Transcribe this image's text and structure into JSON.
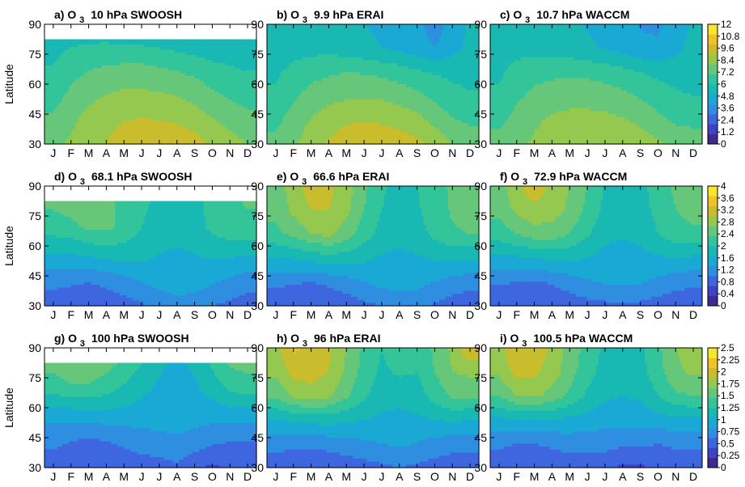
{
  "colors": {
    "palette": [
      "#3e2a91",
      "#3d43c7",
      "#3e66de",
      "#2f8ee0",
      "#1aa9d5",
      "#19b8b3",
      "#33c49a",
      "#66c77a",
      "#95c84f",
      "#c9bd2d",
      "#f0c22a",
      "#f7e62b"
    ],
    "contour_line": "#ffffff",
    "missing": "#ffffff"
  },
  "axes": {
    "ylabel": "Latitude",
    "months": [
      "J",
      "F",
      "M",
      "A",
      "M",
      "J",
      "J",
      "A",
      "S",
      "O",
      "N",
      "D"
    ],
    "lat_ticks": [
      "30",
      "45",
      "60",
      "75",
      "90"
    ]
  },
  "colorbars": [
    {
      "ticks": [
        "12",
        "10.8",
        "9.6",
        "8.4",
        "7.2",
        "6",
        "4.8",
        "3.6",
        "2.4",
        "1.2",
        "0"
      ]
    },
    {
      "ticks": [
        "4",
        "3.6",
        "3.2",
        "2.8",
        "2.4",
        "2",
        "1.6",
        "1.2",
        "0.8",
        "0.4",
        "0"
      ]
    },
    {
      "ticks": [
        "2.5",
        "2.25",
        "2",
        "1.75",
        "1.5",
        "1.25",
        "1",
        "0.75",
        "0.5",
        "0.25",
        "0"
      ]
    }
  ],
  "chart_data": [
    {
      "panel": "a",
      "type": "heatmap",
      "title": "a) O 3  10 hPa SWOOSH",
      "x_categories": [
        "J",
        "F",
        "M",
        "A",
        "M",
        "J",
        "J",
        "A",
        "S",
        "O",
        "N",
        "D"
      ],
      "ylabel": "Latitude",
      "ylim": [
        30,
        90
      ],
      "zlim": [
        0,
        12
      ],
      "data_top_lat": 82.5,
      "values": [
        [
          8.2,
          8.6,
          9.2,
          9.6,
          10.1,
          10.6,
          10.6,
          10.5,
          10.2,
          9.4,
          8.9,
          8.4
        ],
        [
          7.4,
          8.1,
          8.8,
          9.3,
          9.5,
          9.6,
          9.5,
          9.3,
          8.9,
          8.4,
          7.9,
          7.5
        ],
        [
          6.5,
          7.4,
          7.9,
          8.3,
          8.5,
          8.5,
          8.4,
          8.2,
          7.9,
          7.3,
          6.9,
          6.6
        ],
        [
          6.0,
          6.7,
          7.0,
          7.2,
          7.3,
          7.3,
          7.1,
          6.9,
          6.6,
          6.2,
          6.0,
          5.8
        ],
        [
          5.5,
          5.7,
          5.8,
          5.8,
          5.7,
          5.6,
          5.4,
          5.2,
          5.0,
          4.8,
          5.1,
          5.4
        ]
      ]
    },
    {
      "panel": "b",
      "type": "heatmap",
      "title": "b) O 3  9.9 hPa ERAI",
      "x_categories": [
        "J",
        "F",
        "M",
        "A",
        "M",
        "J",
        "J",
        "A",
        "S",
        "O",
        "N",
        "D"
      ],
      "ylabel": "Latitude",
      "ylim": [
        30,
        90
      ],
      "zlim": [
        0,
        12
      ],
      "data_top_lat": 90,
      "values": [
        [
          7.5,
          8.2,
          9.0,
          9.7,
          10.3,
          10.5,
          10.4,
          10.2,
          9.9,
          9.3,
          8.4,
          7.8
        ],
        [
          6.9,
          7.7,
          8.5,
          9.1,
          9.4,
          9.5,
          9.4,
          9.2,
          8.8,
          8.0,
          7.3,
          7.0
        ],
        [
          6.2,
          7.0,
          7.6,
          8.0,
          8.2,
          8.3,
          8.2,
          7.9,
          7.5,
          6.9,
          6.4,
          6.1
        ],
        [
          5.8,
          6.4,
          6.8,
          7.0,
          7.2,
          7.1,
          6.9,
          6.6,
          6.2,
          5.9,
          5.7,
          5.6
        ],
        [
          5.2,
          5.5,
          5.6,
          5.6,
          5.4,
          5.1,
          4.8,
          4.5,
          4.2,
          3.6,
          4.4,
          5.1
        ],
        [
          5.1,
          5.2,
          5.3,
          5.2,
          5.0,
          4.8,
          4.6,
          4.3,
          3.9,
          3.0,
          4.1,
          5.0
        ]
      ]
    },
    {
      "panel": "c",
      "type": "heatmap",
      "title": "c) O 3  10.7 hPa WACCM",
      "x_categories": [
        "J",
        "F",
        "M",
        "A",
        "M",
        "J",
        "J",
        "A",
        "S",
        "O",
        "N",
        "D"
      ],
      "ylabel": "Latitude",
      "ylim": [
        30,
        90
      ],
      "zlim": [
        0,
        12
      ],
      "data_top_lat": 90,
      "values": [
        [
          7.6,
          8.1,
          8.6,
          9.0,
          9.4,
          9.6,
          9.6,
          9.5,
          9.1,
          8.6,
          8.0,
          7.8
        ],
        [
          6.9,
          7.6,
          8.2,
          8.6,
          8.8,
          8.8,
          8.7,
          8.5,
          8.1,
          7.5,
          7.0,
          6.9
        ],
        [
          6.2,
          7.0,
          7.5,
          7.8,
          7.9,
          7.9,
          7.8,
          7.5,
          7.1,
          6.6,
          6.2,
          6.0
        ],
        [
          5.8,
          6.4,
          6.8,
          6.9,
          7.0,
          6.9,
          6.7,
          6.4,
          6.0,
          5.7,
          5.5,
          5.5
        ],
        [
          5.4,
          5.6,
          5.6,
          5.5,
          5.3,
          5.0,
          4.7,
          4.3,
          3.9,
          3.8,
          4.5,
          5.2
        ],
        [
          5.2,
          5.4,
          5.4,
          5.2,
          5.0,
          4.7,
          4.4,
          4.0,
          3.5,
          3.4,
          4.2,
          5.0
        ]
      ]
    },
    {
      "panel": "d",
      "type": "heatmap",
      "title": "d) O 3  68.1 hPa SWOOSH",
      "x_categories": [
        "J",
        "F",
        "M",
        "A",
        "M",
        "J",
        "J",
        "A",
        "S",
        "O",
        "N",
        "D"
      ],
      "ylabel": "Latitude",
      "ylim": [
        30,
        90
      ],
      "zlim": [
        0,
        4
      ],
      "data_top_lat": 82.5,
      "values": [
        [
          0.55,
          0.5,
          0.45,
          0.5,
          0.6,
          0.75,
          0.9,
          1.0,
          0.95,
          0.8,
          0.7,
          0.6
        ],
        [
          0.95,
          0.9,
          0.85,
          0.95,
          1.1,
          1.25,
          1.4,
          1.5,
          1.45,
          1.3,
          1.15,
          1.0
        ],
        [
          1.6,
          1.6,
          1.7,
          1.8,
          1.8,
          1.75,
          1.6,
          1.55,
          1.6,
          1.7,
          1.7,
          1.65
        ],
        [
          2.2,
          2.3,
          2.5,
          2.5,
          2.3,
          2.0,
          1.8,
          1.75,
          1.85,
          2.1,
          2.3,
          2.3
        ],
        [
          2.5,
          2.6,
          2.6,
          2.5,
          2.3,
          2.1,
          1.9,
          1.8,
          1.9,
          2.1,
          2.3,
          2.45
        ]
      ]
    },
    {
      "panel": "e",
      "type": "heatmap",
      "title": "e) O 3  66.6 hPa ERAI",
      "x_categories": [
        "J",
        "F",
        "M",
        "A",
        "M",
        "J",
        "J",
        "A",
        "S",
        "O",
        "N",
        "D"
      ],
      "ylabel": "Latitude",
      "ylim": [
        30,
        90
      ],
      "zlim": [
        0,
        4
      ],
      "data_top_lat": 90,
      "values": [
        [
          0.5,
          0.45,
          0.4,
          0.45,
          0.55,
          0.7,
          0.8,
          0.9,
          0.9,
          0.75,
          0.6,
          0.55
        ],
        [
          0.9,
          0.85,
          0.8,
          0.9,
          1.05,
          1.2,
          1.35,
          1.4,
          1.35,
          1.2,
          1.05,
          0.95
        ],
        [
          1.6,
          1.65,
          1.75,
          1.85,
          1.8,
          1.7,
          1.55,
          1.5,
          1.55,
          1.65,
          1.7,
          1.65
        ],
        [
          2.3,
          2.5,
          2.8,
          2.9,
          2.6,
          2.2,
          1.85,
          1.75,
          1.85,
          2.1,
          2.35,
          2.4
        ],
        [
          2.5,
          2.9,
          3.2,
          3.2,
          2.9,
          2.4,
          2.0,
          1.85,
          1.95,
          2.2,
          2.45,
          2.6
        ],
        [
          2.6,
          3.0,
          3.4,
          3.3,
          3.0,
          2.5,
          2.05,
          1.9,
          2.0,
          2.2,
          2.5,
          2.7
        ]
      ]
    },
    {
      "panel": "f",
      "type": "heatmap",
      "title": "f) O 3  72.9 hPa WACCM",
      "x_categories": [
        "J",
        "F",
        "M",
        "A",
        "M",
        "J",
        "J",
        "A",
        "S",
        "O",
        "N",
        "D"
      ],
      "ylabel": "Latitude",
      "ylim": [
        30,
        90
      ],
      "zlim": [
        0,
        4
      ],
      "data_top_lat": 90,
      "values": [
        [
          0.5,
          0.45,
          0.4,
          0.45,
          0.55,
          0.65,
          0.7,
          0.75,
          0.7,
          0.6,
          0.55,
          0.5
        ],
        [
          0.85,
          0.8,
          0.75,
          0.85,
          1.0,
          1.15,
          1.25,
          1.3,
          1.25,
          1.1,
          0.95,
          0.9
        ],
        [
          1.5,
          1.55,
          1.6,
          1.7,
          1.7,
          1.6,
          1.45,
          1.4,
          1.45,
          1.55,
          1.6,
          1.55
        ],
        [
          2.2,
          2.4,
          2.6,
          2.6,
          2.4,
          2.05,
          1.75,
          1.65,
          1.75,
          2.0,
          2.25,
          2.3
        ],
        [
          2.5,
          2.9,
          3.1,
          3.0,
          2.7,
          2.3,
          1.9,
          1.75,
          1.85,
          2.1,
          2.4,
          2.55
        ],
        [
          2.6,
          3.1,
          3.45,
          3.1,
          2.8,
          2.4,
          1.95,
          1.8,
          1.9,
          2.15,
          2.5,
          2.65
        ]
      ]
    },
    {
      "panel": "g",
      "type": "heatmap",
      "title": "g) O 3  100 hPa SWOOSH",
      "x_categories": [
        "J",
        "F",
        "M",
        "A",
        "M",
        "J",
        "J",
        "A",
        "S",
        "O",
        "N",
        "D"
      ],
      "ylabel": "Latitude",
      "ylim": [
        30,
        90
      ],
      "zlim": [
        0,
        2.5
      ],
      "data_top_lat": 82.5,
      "values": [
        [
          0.4,
          0.35,
          0.3,
          0.3,
          0.35,
          0.4,
          0.4,
          0.45,
          0.3,
          0.2,
          0.3,
          0.35
        ],
        [
          0.55,
          0.5,
          0.45,
          0.5,
          0.55,
          0.6,
          0.65,
          0.7,
          0.65,
          0.55,
          0.5,
          0.5
        ],
        [
          0.85,
          0.85,
          0.85,
          0.9,
          0.9,
          0.9,
          0.9,
          0.9,
          0.85,
          0.85,
          0.85,
          0.85
        ],
        [
          1.35,
          1.45,
          1.45,
          1.35,
          1.2,
          1.05,
          0.95,
          0.9,
          0.95,
          1.1,
          1.3,
          1.35
        ],
        [
          1.6,
          1.7,
          1.7,
          1.6,
          1.45,
          1.25,
          1.05,
          0.95,
          1.05,
          1.3,
          1.55,
          1.6
        ]
      ]
    },
    {
      "panel": "h",
      "type": "heatmap",
      "title": "h) O 3  96 hPa ERAI",
      "x_categories": [
        "J",
        "F",
        "M",
        "A",
        "M",
        "J",
        "J",
        "A",
        "S",
        "O",
        "N",
        "D"
      ],
      "ylabel": "Latitude",
      "ylim": [
        30,
        90
      ],
      "zlim": [
        0,
        2.5
      ],
      "data_top_lat": 90,
      "values": [
        [
          0.35,
          0.3,
          0.3,
          0.3,
          0.35,
          0.4,
          0.45,
          0.5,
          0.45,
          0.4,
          0.35,
          0.35
        ],
        [
          0.6,
          0.55,
          0.55,
          0.6,
          0.65,
          0.7,
          0.75,
          0.8,
          0.75,
          0.65,
          0.6,
          0.6
        ],
        [
          1.0,
          1.05,
          1.1,
          1.1,
          1.05,
          1.0,
          0.95,
          0.95,
          0.95,
          1.0,
          1.05,
          1.0
        ],
        [
          1.55,
          1.8,
          1.9,
          1.8,
          1.55,
          1.3,
          1.1,
          1.05,
          1.15,
          1.35,
          1.55,
          1.55
        ],
        [
          1.8,
          2.1,
          2.1,
          2.0,
          1.7,
          1.4,
          1.2,
          1.3,
          1.25,
          1.5,
          1.75,
          1.8
        ],
        [
          1.9,
          2.3,
          2.2,
          2.05,
          1.75,
          1.45,
          1.25,
          1.45,
          1.3,
          1.55,
          1.8,
          2.25
        ]
      ]
    },
    {
      "panel": "i",
      "type": "heatmap",
      "title": "i) O 3  100.5 hPa WACCM",
      "x_categories": [
        "J",
        "F",
        "M",
        "A",
        "M",
        "J",
        "J",
        "A",
        "S",
        "O",
        "N",
        "D"
      ],
      "ylabel": "Latitude",
      "ylim": [
        30,
        90
      ],
      "zlim": [
        0,
        2.5
      ],
      "data_top_lat": 90,
      "values": [
        [
          0.35,
          0.3,
          0.3,
          0.3,
          0.35,
          0.35,
          0.3,
          0.2,
          0.2,
          0.3,
          0.35,
          0.35
        ],
        [
          0.55,
          0.5,
          0.5,
          0.55,
          0.6,
          0.6,
          0.6,
          0.55,
          0.55,
          0.5,
          0.55,
          0.55
        ],
        [
          0.95,
          1.0,
          1.0,
          1.0,
          0.95,
          0.9,
          0.85,
          0.85,
          0.85,
          0.9,
          0.95,
          0.95
        ],
        [
          1.5,
          1.75,
          1.8,
          1.65,
          1.45,
          1.2,
          1.05,
          1.0,
          1.05,
          1.25,
          1.45,
          1.5
        ],
        [
          1.8,
          2.1,
          2.05,
          1.9,
          1.6,
          1.35,
          1.15,
          1.05,
          1.15,
          1.4,
          1.7,
          1.8
        ],
        [
          1.9,
          2.2,
          2.15,
          1.95,
          1.65,
          1.4,
          1.2,
          1.1,
          1.2,
          1.45,
          1.75,
          1.85
        ]
      ]
    }
  ]
}
